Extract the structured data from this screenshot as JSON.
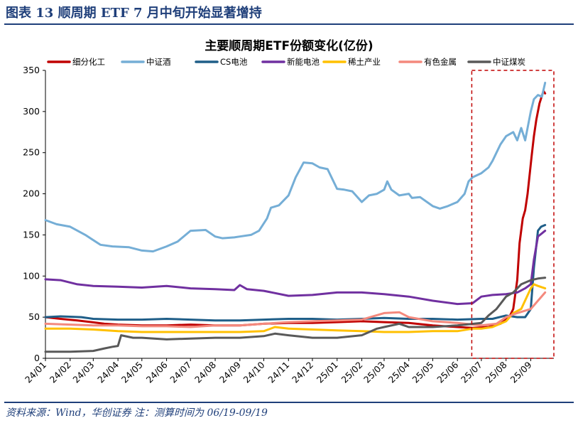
{
  "header": {
    "figure_title": "图表  13    顺周期 ETF 7 月中旬开始显著增持"
  },
  "footer": {
    "source": "资料来源：Wind，华创证券  注：测算时间为 06/19-09/19"
  },
  "chart_data": {
    "type": "line",
    "title": "主要顺周期ETF份额变化(亿份)",
    "xlabel": "",
    "ylabel": "",
    "ylim": [
      0,
      350
    ],
    "yticks": [
      "0",
      "50",
      "100",
      "150",
      "200",
      "250",
      "300",
      "350"
    ],
    "xlim": [
      "2024-01-01",
      "2025-09-30"
    ],
    "xticks": [
      {
        "date": "2024-01-01",
        "label": "24/01"
      },
      {
        "date": "2024-02-01",
        "label": "24/02"
      },
      {
        "date": "2024-03-01",
        "label": "24/03"
      },
      {
        "date": "2024-04-01",
        "label": "24/04"
      },
      {
        "date": "2024-05-01",
        "label": "24/05"
      },
      {
        "date": "2024-06-01",
        "label": "24/06"
      },
      {
        "date": "2024-07-01",
        "label": "24/07"
      },
      {
        "date": "2024-08-01",
        "label": "24/08"
      },
      {
        "date": "2024-09-01",
        "label": "24/09"
      },
      {
        "date": "2024-10-01",
        "label": "24/10"
      },
      {
        "date": "2024-11-01",
        "label": "24/11"
      },
      {
        "date": "2024-12-01",
        "label": "24/12"
      },
      {
        "date": "2025-01-01",
        "label": "25/01"
      },
      {
        "date": "2025-02-01",
        "label": "25/02"
      },
      {
        "date": "2025-03-01",
        "label": "25/03"
      },
      {
        "date": "2025-04-01",
        "label": "25/04"
      },
      {
        "date": "2025-05-01",
        "label": "25/05"
      },
      {
        "date": "2025-06-01",
        "label": "25/06"
      },
      {
        "date": "2025-07-01",
        "label": "25/07"
      },
      {
        "date": "2025-08-01",
        "label": "25/08"
      },
      {
        "date": "2025-09-01",
        "label": "25/09"
      }
    ],
    "grid": false,
    "legend_position": "top",
    "highlight_box": {
      "x_start": "2025-06-19",
      "x_end": "2025-09-30",
      "y_start": 0,
      "y_end": 350,
      "style": "dashed",
      "color": "#c00000"
    },
    "series": [
      {
        "name": "细分化工",
        "color": "#c00000",
        "points": [
          [
            "2024-01-01",
            50
          ],
          [
            "2024-01-20",
            48
          ],
          [
            "2024-02-10",
            46
          ],
          [
            "2024-02-28",
            44
          ],
          [
            "2024-03-15",
            42
          ],
          [
            "2024-04-01",
            41
          ],
          [
            "2024-05-01",
            40
          ],
          [
            "2024-06-01",
            40
          ],
          [
            "2024-07-01",
            41
          ],
          [
            "2024-08-01",
            40
          ],
          [
            "2024-09-01",
            40
          ],
          [
            "2024-10-01",
            42
          ],
          [
            "2024-11-01",
            43
          ],
          [
            "2024-12-01",
            43
          ],
          [
            "2025-01-01",
            44
          ],
          [
            "2025-02-01",
            45
          ],
          [
            "2025-03-01",
            44
          ],
          [
            "2025-04-01",
            43
          ],
          [
            "2025-05-01",
            40
          ],
          [
            "2025-06-01",
            38
          ],
          [
            "2025-06-20",
            37
          ],
          [
            "2025-07-10",
            38
          ],
          [
            "2025-07-25",
            42
          ],
          [
            "2025-08-05",
            50
          ],
          [
            "2025-08-10",
            60
          ],
          [
            "2025-08-15",
            95
          ],
          [
            "2025-08-18",
            140
          ],
          [
            "2025-08-22",
            170
          ],
          [
            "2025-08-25",
            180
          ],
          [
            "2025-08-28",
            200
          ],
          [
            "2025-09-02",
            245
          ],
          [
            "2025-09-05",
            270
          ],
          [
            "2025-09-08",
            290
          ],
          [
            "2025-09-12",
            310
          ],
          [
            "2025-09-17",
            325
          ],
          [
            "2025-09-19",
            322
          ]
        ]
      },
      {
        "name": "中证酒",
        "color": "#75aed6",
        "points": [
          [
            "2024-01-01",
            168
          ],
          [
            "2024-01-15",
            163
          ],
          [
            "2024-02-01",
            160
          ],
          [
            "2024-02-20",
            150
          ],
          [
            "2024-03-10",
            138
          ],
          [
            "2024-03-25",
            136
          ],
          [
            "2024-04-15",
            135
          ],
          [
            "2024-05-01",
            131
          ],
          [
            "2024-05-15",
            130
          ],
          [
            "2024-06-01",
            136
          ],
          [
            "2024-06-15",
            142
          ],
          [
            "2024-07-01",
            155
          ],
          [
            "2024-07-20",
            156
          ],
          [
            "2024-08-01",
            148
          ],
          [
            "2024-08-10",
            146
          ],
          [
            "2024-08-25",
            147
          ],
          [
            "2024-09-01",
            148
          ],
          [
            "2024-09-15",
            150
          ],
          [
            "2024-09-25",
            155
          ],
          [
            "2024-10-05",
            170
          ],
          [
            "2024-10-10",
            183
          ],
          [
            "2024-10-20",
            186
          ],
          [
            "2024-11-01",
            198
          ],
          [
            "2024-11-10",
            220
          ],
          [
            "2024-11-20",
            238
          ],
          [
            "2024-12-01",
            237
          ],
          [
            "2024-12-10",
            232
          ],
          [
            "2024-12-20",
            230
          ],
          [
            "2025-01-01",
            206
          ],
          [
            "2025-01-10",
            205
          ],
          [
            "2025-01-20",
            203
          ],
          [
            "2025-02-01",
            190
          ],
          [
            "2025-02-10",
            198
          ],
          [
            "2025-02-20",
            200
          ],
          [
            "2025-03-01",
            205
          ],
          [
            "2025-03-05",
            215
          ],
          [
            "2025-03-10",
            205
          ],
          [
            "2025-03-20",
            198
          ],
          [
            "2025-04-01",
            200
          ],
          [
            "2025-04-05",
            195
          ],
          [
            "2025-04-15",
            196
          ],
          [
            "2025-05-01",
            185
          ],
          [
            "2025-05-10",
            182
          ],
          [
            "2025-05-20",
            185
          ],
          [
            "2025-06-01",
            190
          ],
          [
            "2025-06-10",
            200
          ],
          [
            "2025-06-15",
            215
          ],
          [
            "2025-06-20",
            220
          ],
          [
            "2025-07-01",
            225
          ],
          [
            "2025-07-10",
            232
          ],
          [
            "2025-07-15",
            240
          ],
          [
            "2025-07-20",
            250
          ],
          [
            "2025-07-25",
            260
          ],
          [
            "2025-08-01",
            270
          ],
          [
            "2025-08-10",
            275
          ],
          [
            "2025-08-15",
            265
          ],
          [
            "2025-08-20",
            280
          ],
          [
            "2025-08-25",
            265
          ],
          [
            "2025-09-01",
            300
          ],
          [
            "2025-09-05",
            315
          ],
          [
            "2025-09-10",
            320
          ],
          [
            "2025-09-15",
            318
          ],
          [
            "2025-09-19",
            335
          ]
        ]
      },
      {
        "name": "CS电池",
        "color": "#1f5e88",
        "points": [
          [
            "2024-01-01",
            50
          ],
          [
            "2024-01-20",
            51
          ],
          [
            "2024-02-15",
            50
          ],
          [
            "2024-03-01",
            48
          ],
          [
            "2024-04-01",
            47
          ],
          [
            "2024-05-01",
            47
          ],
          [
            "2024-06-01",
            48
          ],
          [
            "2024-07-01",
            47
          ],
          [
            "2024-08-01",
            46
          ],
          [
            "2024-09-01",
            46
          ],
          [
            "2024-10-01",
            47
          ],
          [
            "2024-11-01",
            48
          ],
          [
            "2024-12-01",
            48
          ],
          [
            "2025-01-01",
            47
          ],
          [
            "2025-02-01",
            48
          ],
          [
            "2025-03-01",
            49
          ],
          [
            "2025-04-01",
            48
          ],
          [
            "2025-05-01",
            48
          ],
          [
            "2025-06-01",
            47
          ],
          [
            "2025-07-01",
            48
          ],
          [
            "2025-07-15",
            48
          ],
          [
            "2025-08-01",
            52
          ],
          [
            "2025-08-15",
            50
          ],
          [
            "2025-08-25",
            50
          ],
          [
            "2025-09-01",
            60
          ],
          [
            "2025-09-05",
            110
          ],
          [
            "2025-09-10",
            155
          ],
          [
            "2025-09-14",
            160
          ],
          [
            "2025-09-19",
            162
          ]
        ]
      },
      {
        "name": "新能电池",
        "color": "#7030a0",
        "points": [
          [
            "2024-01-01",
            96
          ],
          [
            "2024-01-20",
            95
          ],
          [
            "2024-02-10",
            90
          ],
          [
            "2024-03-01",
            88
          ],
          [
            "2024-04-01",
            87
          ],
          [
            "2024-05-01",
            86
          ],
          [
            "2024-06-01",
            88
          ],
          [
            "2024-07-01",
            85
          ],
          [
            "2024-08-01",
            84
          ],
          [
            "2024-08-25",
            83
          ],
          [
            "2024-09-01",
            89
          ],
          [
            "2024-09-10",
            84
          ],
          [
            "2024-10-01",
            82
          ],
          [
            "2024-11-01",
            76
          ],
          [
            "2024-12-01",
            77
          ],
          [
            "2025-01-01",
            80
          ],
          [
            "2025-02-01",
            80
          ],
          [
            "2025-03-01",
            78
          ],
          [
            "2025-04-01",
            75
          ],
          [
            "2025-05-01",
            70
          ],
          [
            "2025-06-01",
            66
          ],
          [
            "2025-06-20",
            67
          ],
          [
            "2025-07-01",
            75
          ],
          [
            "2025-07-15",
            77
          ],
          [
            "2025-08-01",
            78
          ],
          [
            "2025-08-15",
            80
          ],
          [
            "2025-08-25",
            85
          ],
          [
            "2025-09-01",
            90
          ],
          [
            "2025-09-05",
            120
          ],
          [
            "2025-09-10",
            148
          ],
          [
            "2025-09-19",
            155
          ]
        ]
      },
      {
        "name": "稀土产业",
        "color": "#ffc000",
        "points": [
          [
            "2024-01-01",
            36
          ],
          [
            "2024-02-01",
            36
          ],
          [
            "2024-03-01",
            35
          ],
          [
            "2024-04-01",
            33
          ],
          [
            "2024-05-01",
            32
          ],
          [
            "2024-06-01",
            32
          ],
          [
            "2024-07-01",
            32
          ],
          [
            "2024-08-01",
            32
          ],
          [
            "2024-09-01",
            32
          ],
          [
            "2024-10-01",
            33
          ],
          [
            "2024-10-15",
            38
          ],
          [
            "2024-11-01",
            36
          ],
          [
            "2024-12-01",
            35
          ],
          [
            "2025-01-01",
            34
          ],
          [
            "2025-02-01",
            33
          ],
          [
            "2025-03-01",
            32
          ],
          [
            "2025-04-01",
            32
          ],
          [
            "2025-05-01",
            33
          ],
          [
            "2025-06-01",
            33
          ],
          [
            "2025-06-20",
            36
          ],
          [
            "2025-07-01",
            36
          ],
          [
            "2025-07-15",
            38
          ],
          [
            "2025-08-01",
            45
          ],
          [
            "2025-08-10",
            55
          ],
          [
            "2025-08-20",
            60
          ],
          [
            "2025-09-01",
            85
          ],
          [
            "2025-09-05",
            90
          ],
          [
            "2025-09-10",
            88
          ],
          [
            "2025-09-19",
            85
          ]
        ]
      },
      {
        "name": "有色金属",
        "color": "#f4897d",
        "points": [
          [
            "2024-01-01",
            42
          ],
          [
            "2024-02-01",
            41
          ],
          [
            "2024-03-01",
            40
          ],
          [
            "2024-04-01",
            40
          ],
          [
            "2024-05-01",
            39
          ],
          [
            "2024-06-01",
            39
          ],
          [
            "2024-07-01",
            38
          ],
          [
            "2024-08-01",
            40
          ],
          [
            "2024-09-01",
            40
          ],
          [
            "2024-10-01",
            42
          ],
          [
            "2024-11-01",
            44
          ],
          [
            "2024-12-01",
            45
          ],
          [
            "2025-01-01",
            46
          ],
          [
            "2025-02-01",
            47
          ],
          [
            "2025-03-01",
            55
          ],
          [
            "2025-03-20",
            56
          ],
          [
            "2025-04-01",
            50
          ],
          [
            "2025-05-01",
            45
          ],
          [
            "2025-06-01",
            43
          ],
          [
            "2025-07-01",
            40
          ],
          [
            "2025-07-20",
            42
          ],
          [
            "2025-08-01",
            50
          ],
          [
            "2025-08-15",
            55
          ],
          [
            "2025-09-01",
            60
          ],
          [
            "2025-09-10",
            70
          ],
          [
            "2025-09-19",
            80
          ]
        ]
      },
      {
        "name": "中证煤炭",
        "color": "#595959",
        "points": [
          [
            "2024-01-01",
            8
          ],
          [
            "2024-01-20",
            8
          ],
          [
            "2024-02-01",
            8
          ],
          [
            "2024-03-01",
            9
          ],
          [
            "2024-03-15",
            12
          ],
          [
            "2024-03-25",
            14
          ],
          [
            "2024-04-01",
            15
          ],
          [
            "2024-04-05",
            28
          ],
          [
            "2024-04-20",
            25
          ],
          [
            "2024-05-01",
            25
          ],
          [
            "2024-06-01",
            23
          ],
          [
            "2024-07-01",
            24
          ],
          [
            "2024-08-01",
            25
          ],
          [
            "2024-09-01",
            25
          ],
          [
            "2024-10-01",
            27
          ],
          [
            "2024-10-15",
            30
          ],
          [
            "2024-11-01",
            28
          ],
          [
            "2024-12-01",
            25
          ],
          [
            "2025-01-01",
            25
          ],
          [
            "2025-02-01",
            28
          ],
          [
            "2025-02-20",
            36
          ],
          [
            "2025-03-01",
            38
          ],
          [
            "2025-03-20",
            42
          ],
          [
            "2025-04-01",
            38
          ],
          [
            "2025-05-01",
            38
          ],
          [
            "2025-06-01",
            40
          ],
          [
            "2025-07-01",
            43
          ],
          [
            "2025-07-10",
            52
          ],
          [
            "2025-07-20",
            60
          ],
          [
            "2025-08-01",
            75
          ],
          [
            "2025-08-10",
            80
          ],
          [
            "2025-08-20",
            90
          ],
          [
            "2025-09-01",
            95
          ],
          [
            "2025-09-10",
            97
          ],
          [
            "2025-09-19",
            98
          ]
        ]
      }
    ]
  }
}
